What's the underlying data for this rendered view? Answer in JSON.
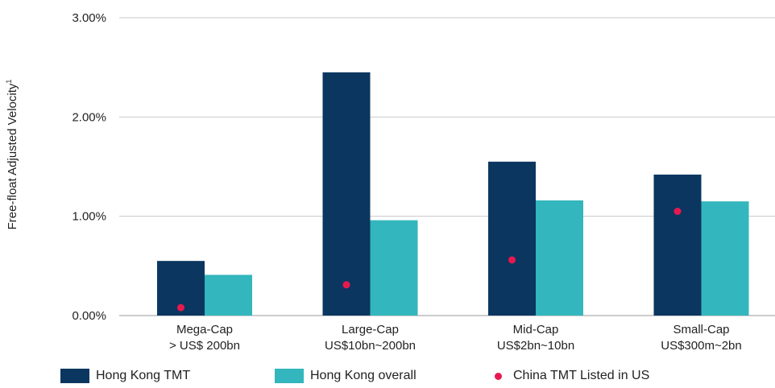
{
  "chart_data": {
    "type": "bar",
    "ylabel": "Free-float Adjusted Velocity",
    "ylabel_superscript": "1",
    "ylim": [
      0,
      3.0
    ],
    "yticks": [
      0,
      1.0,
      2.0,
      3.0
    ],
    "ytick_labels": [
      "0.00%",
      "1.00%",
      "2.00%",
      "3.00%"
    ],
    "y_unit": "%",
    "grid": "horizontal",
    "legend_position": "bottom",
    "categories": [
      [
        "Mega-Cap",
        "> US$ 200bn"
      ],
      [
        "Large-Cap",
        "US$10bn~200bn"
      ],
      [
        "Mid-Cap",
        "US$2bn~10bn"
      ],
      [
        "Small-Cap",
        "US$300m~2bn"
      ]
    ],
    "series": [
      {
        "name": "Hong Kong TMT",
        "kind": "bar",
        "color": "#0b3660",
        "values": [
          0.55,
          2.45,
          1.55,
          1.42
        ]
      },
      {
        "name": "Hong Kong overall",
        "kind": "bar",
        "color": "#33b6bd",
        "values": [
          0.41,
          0.96,
          1.16,
          1.15
        ]
      },
      {
        "name": "China TMT Listed in US",
        "kind": "dot",
        "color": "#e8194f",
        "values": [
          0.08,
          0.31,
          0.56,
          1.05
        ]
      }
    ]
  }
}
